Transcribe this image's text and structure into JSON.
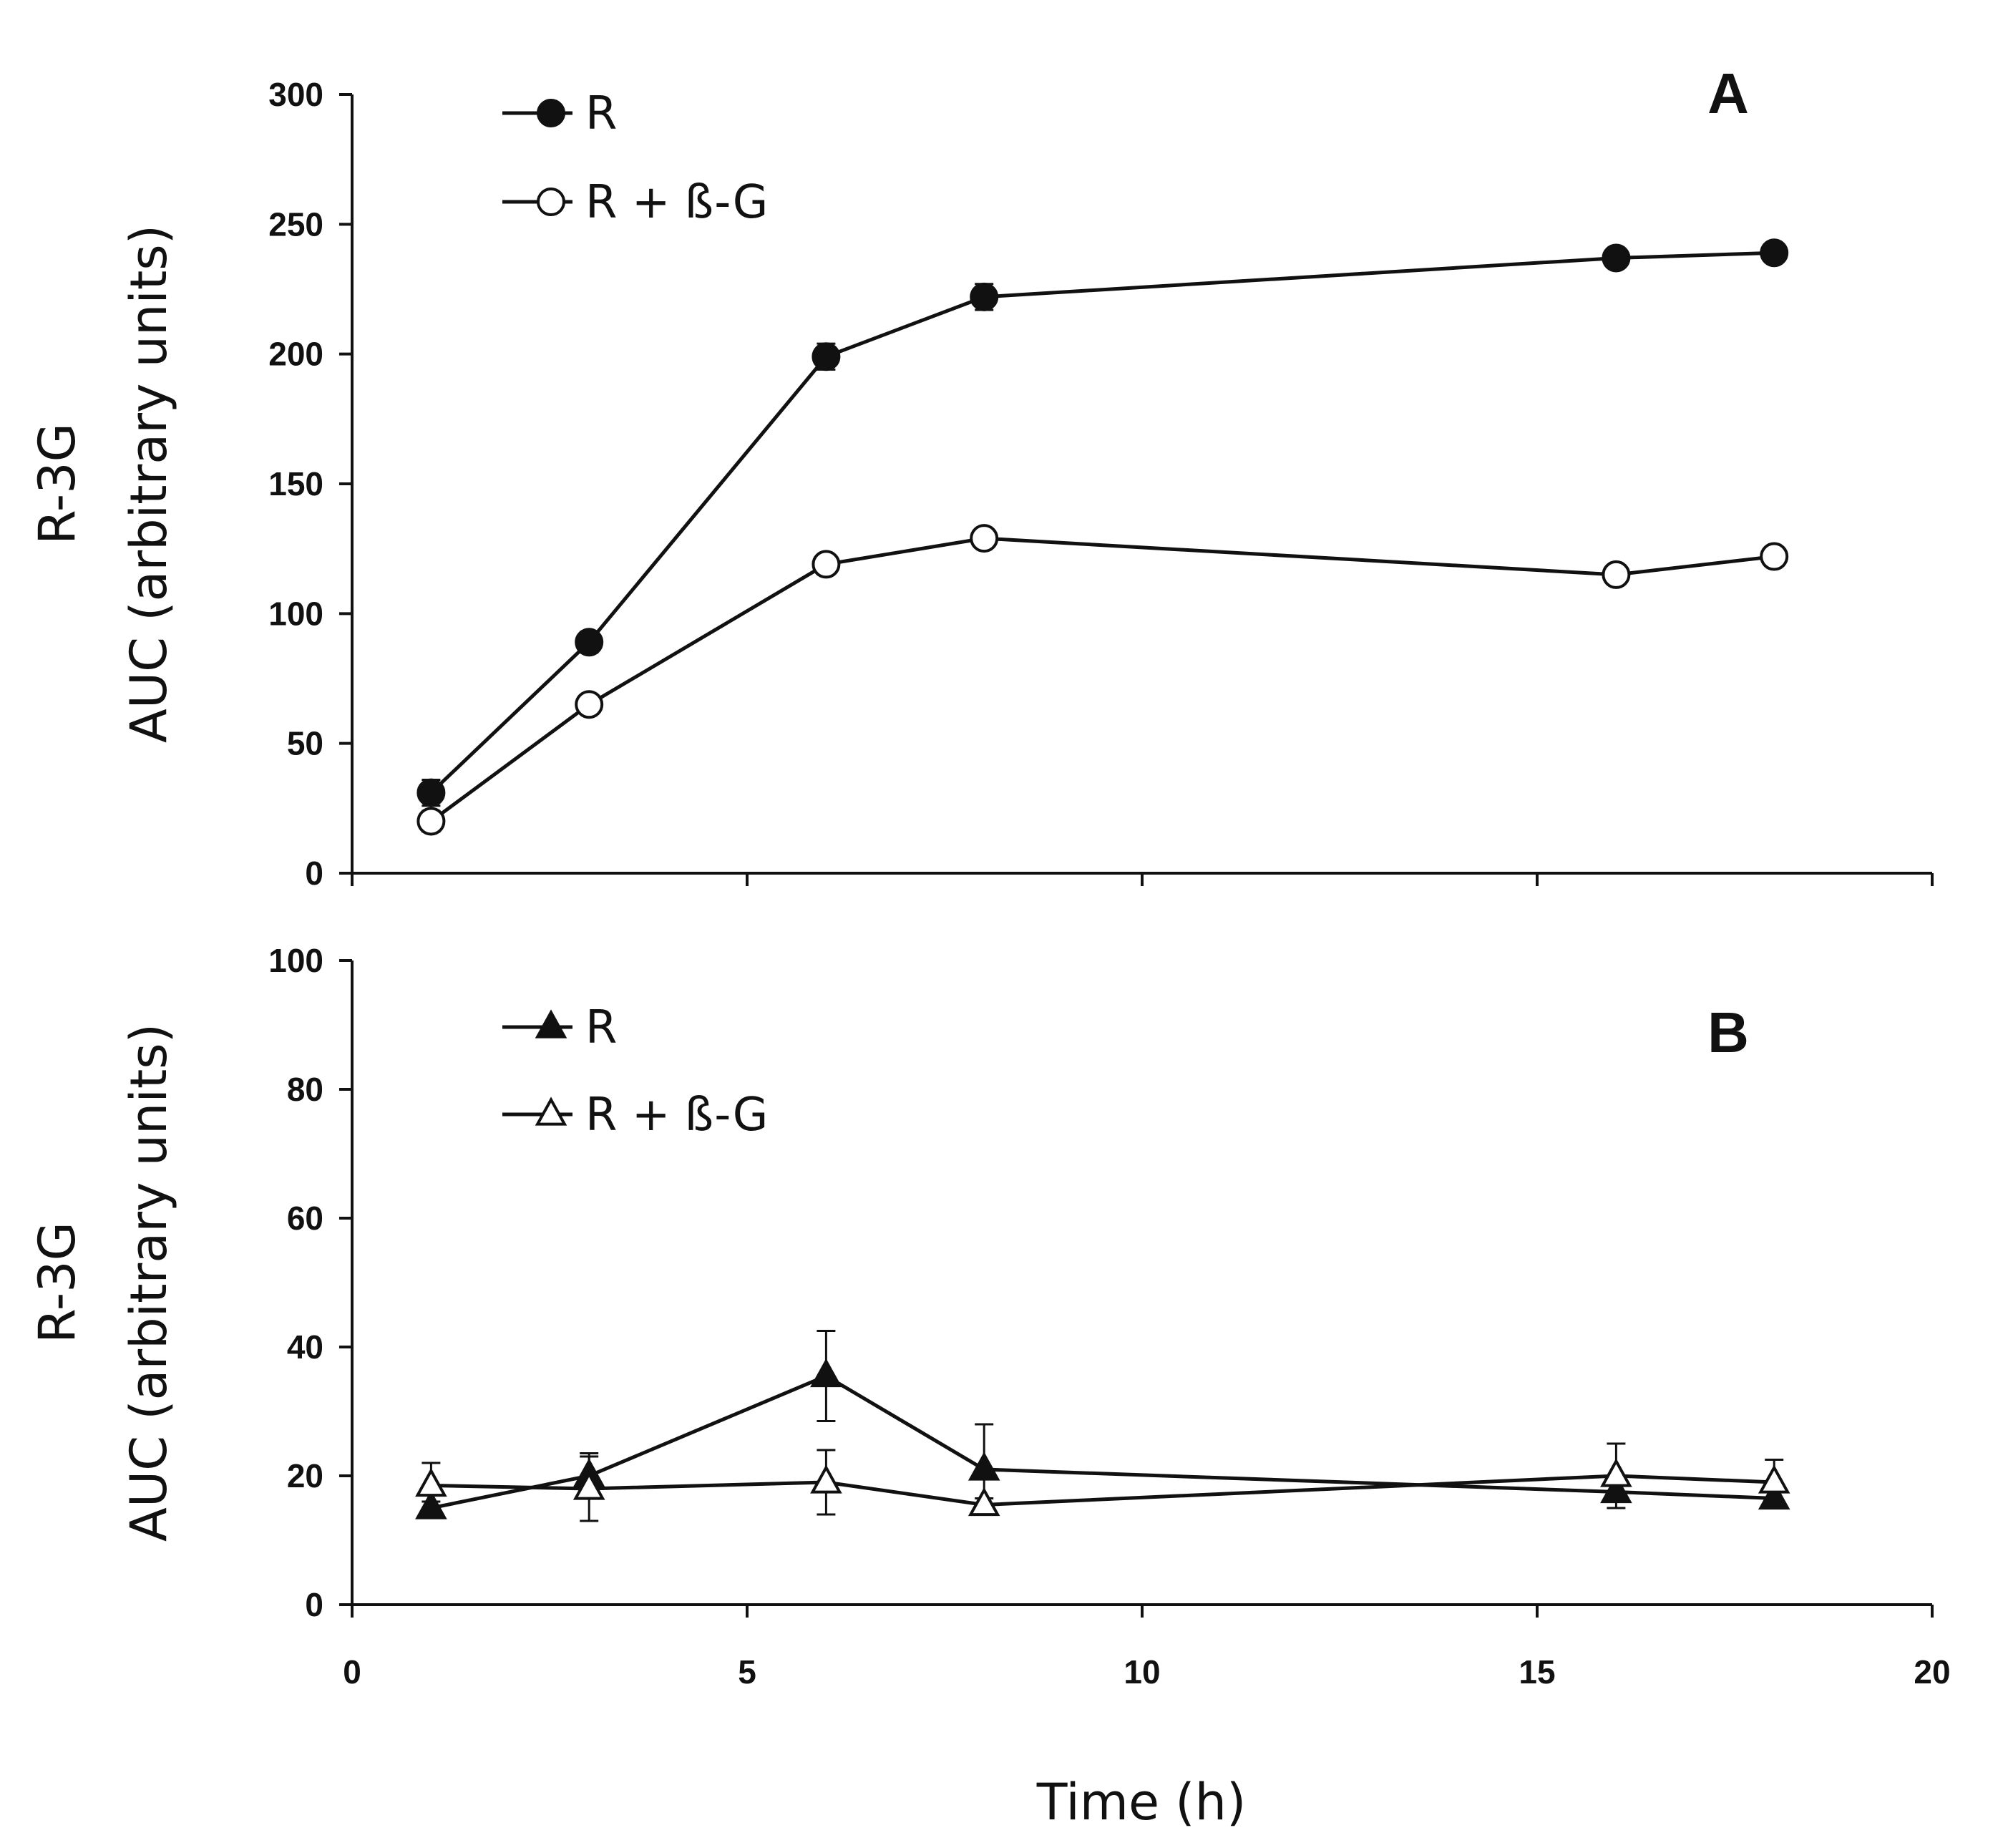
{
  "figure": {
    "xlabel": "Time (h)"
  },
  "chart_data": [
    {
      "type": "line",
      "panel_label": "A",
      "title": "",
      "xlabel": "Time (h)",
      "ylabel_line1": "R-3G",
      "ylabel_line2": "AUC (arbitrary units)",
      "xlim": [
        0,
        20
      ],
      "ylim": [
        0,
        300
      ],
      "xticks": [
        0,
        5,
        10,
        15,
        20
      ],
      "yticks": [
        0,
        50,
        100,
        150,
        200,
        250,
        300
      ],
      "legend_position": "top-left",
      "series": [
        {
          "name": "R",
          "marker": "circle",
          "filled": true,
          "x": [
            1,
            3,
            6,
            8,
            16,
            18
          ],
          "y": [
            31,
            89,
            199,
            222,
            237,
            239
          ],
          "err": [
            5,
            4,
            5,
            5,
            3,
            3
          ]
        },
        {
          "name": "R + ß-G",
          "marker": "circle",
          "filled": false,
          "x": [
            1,
            3,
            6,
            8,
            16,
            18
          ],
          "y": [
            20,
            65,
            119,
            129,
            115,
            122
          ],
          "err": [
            4,
            3,
            3,
            3,
            3,
            3
          ]
        }
      ]
    },
    {
      "type": "line",
      "panel_label": "B",
      "title": "",
      "xlabel": "Time (h)",
      "ylabel_line1": "R-3G",
      "ylabel_line2": "AUC (arbitrary units)",
      "xlim": [
        0,
        20
      ],
      "ylim": [
        0,
        100
      ],
      "xticks": [
        0,
        5,
        10,
        15,
        20
      ],
      "yticks": [
        0,
        20,
        40,
        60,
        80,
        100
      ],
      "legend_position": "top-left",
      "series": [
        {
          "name": "R",
          "marker": "triangle",
          "filled": true,
          "x": [
            1,
            3,
            6,
            8,
            16,
            18
          ],
          "y": [
            15,
            20,
            35.5,
            21,
            17.5,
            16.5
          ],
          "err": [
            1,
            3.5,
            7,
            7,
            1,
            1
          ]
        },
        {
          "name": "R + ß-G",
          "marker": "triangle",
          "filled": false,
          "x": [
            1,
            3,
            6,
            8,
            16,
            18
          ],
          "y": [
            18.5,
            18,
            19,
            15.5,
            20,
            19
          ],
          "err": [
            3.5,
            5,
            5,
            1,
            5,
            3.5
          ]
        }
      ]
    }
  ]
}
